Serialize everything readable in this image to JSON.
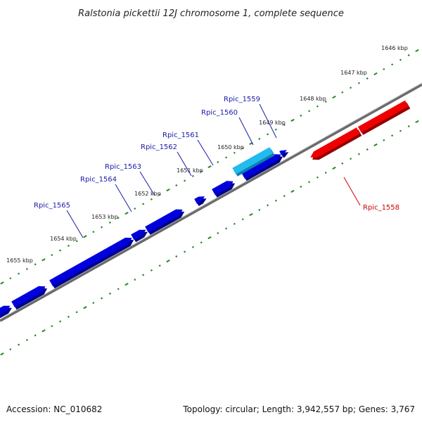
{
  "title": "Ralstonia pickettii 12J chromosome 1, complete sequence",
  "footer": {
    "accession": "Accession: NC_010682",
    "summary": "Topology: circular; Length: 3,942,557 bp; Genes: 3,767"
  },
  "colors": {
    "forward_gene": "#0000dd",
    "highlighted_gene": "#22bbee",
    "reverse_gene": "#ee0000",
    "backbone": "#808080",
    "tick": "#228822",
    "forward_label": "#1a1aa8",
    "reverse_label": "#cc0000"
  },
  "scale_labels": [
    "1646 kbp",
    "1647 kbp",
    "1648 kbp",
    "1649 kbp",
    "1650 kbp",
    "1651 kbp",
    "1652 kbp",
    "1653 kbp",
    "1654 kbp",
    "1655 kbp"
  ],
  "genes": [
    {
      "name": "Rpic_1559",
      "strand": "forward",
      "highlight": true
    },
    {
      "name": "Rpic_1560",
      "strand": "forward",
      "highlight": false
    },
    {
      "name": "Rpic_1561",
      "strand": "forward",
      "highlight": false
    },
    {
      "name": "Rpic_1562",
      "strand": "forward",
      "highlight": false
    },
    {
      "name": "Rpic_1563",
      "strand": "forward",
      "highlight": false
    },
    {
      "name": "Rpic_1564",
      "strand": "forward",
      "highlight": false
    },
    {
      "name": "Rpic_1565",
      "strand": "forward",
      "highlight": false
    },
    {
      "name": "Rpic_1558",
      "strand": "reverse",
      "highlight": false
    }
  ]
}
